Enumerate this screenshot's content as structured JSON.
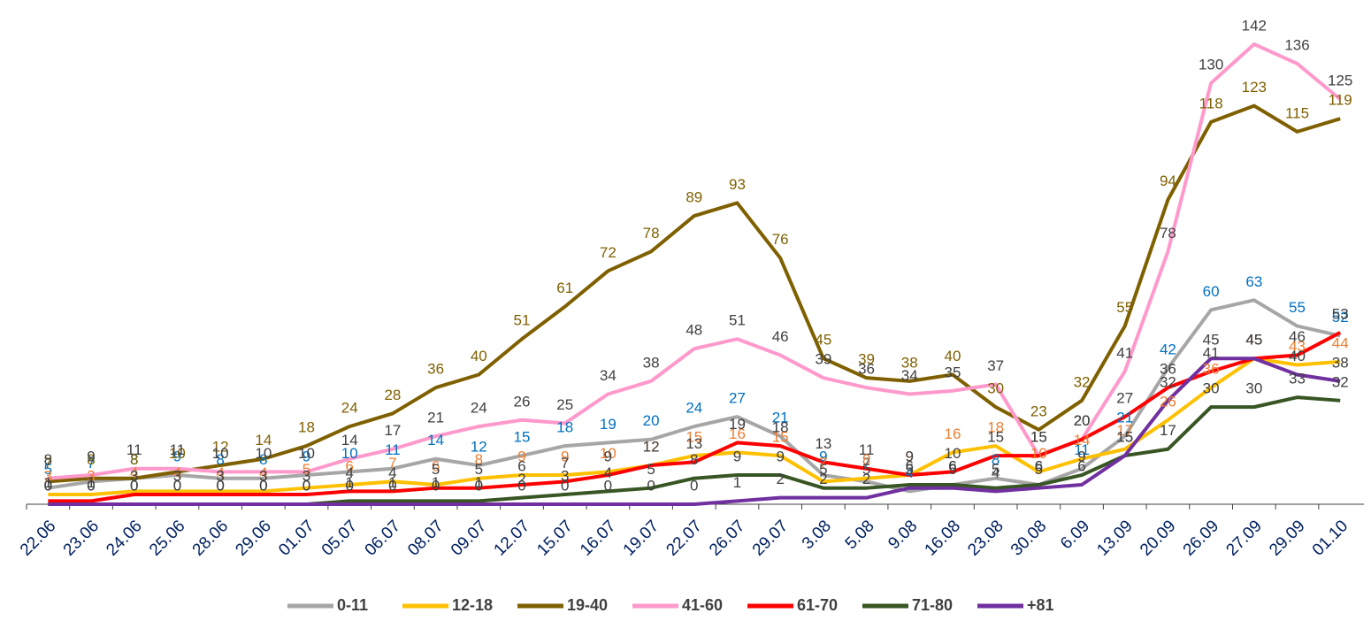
{
  "chart_data": {
    "type": "line",
    "categories": [
      "22.06",
      "23.06",
      "24.06",
      "25.06",
      "28.06",
      "29.06",
      "01.07",
      "05.07",
      "06.07",
      "08.07",
      "09.07",
      "12.07",
      "15.07",
      "16.07",
      "19.07",
      "22.07",
      "26.07",
      "29.07",
      "3.08",
      "5.08",
      "9.08",
      "16.08",
      "23.08",
      "30.08",
      "6.09",
      "13.09",
      "20.09",
      "26.09",
      "27.09",
      "29.09",
      "01.10"
    ],
    "ylim": [
      0,
      145
    ],
    "legend": "bottom",
    "series": [
      {
        "name": "0-11",
        "color": "#a6a6a6",
        "label_color": "#0070c0",
        "values": [
          5,
          7,
          8,
          9,
          8,
          8,
          9,
          10,
          11,
          14,
          12,
          15,
          18,
          19,
          20,
          24,
          27,
          21,
          9,
          7,
          4,
          6,
          8,
          6,
          11,
          21,
          42,
          60,
          63,
          55,
          52
        ]
      },
      {
        "name": "12-18",
        "color": "#ffc000",
        "label_color": "#ed7d31",
        "values": [
          3,
          3,
          4,
          4,
          4,
          4,
          5,
          6,
          7,
          6,
          8,
          9,
          9,
          10,
          12,
          15,
          16,
          15,
          7,
          8,
          9,
          16,
          18,
          10,
          14,
          17,
          26,
          36,
          45,
          43,
          44
        ]
      },
      {
        "name": "19-40",
        "color": "#7f6000",
        "label_color": "#7f6000",
        "values": [
          7,
          8,
          8,
          10,
          12,
          14,
          18,
          24,
          28,
          36,
          40,
          51,
          61,
          72,
          78,
          89,
          93,
          76,
          45,
          39,
          38,
          40,
          30,
          23,
          32,
          55,
          94,
          118,
          123,
          115,
          119
        ]
      },
      {
        "name": "41-60",
        "color": "#ff99cc",
        "label_color": "#404040",
        "values": [
          8,
          9,
          11,
          11,
          10,
          10,
          10,
          14,
          17,
          21,
          24,
          26,
          25,
          34,
          38,
          48,
          51,
          46,
          39,
          36,
          34,
          35,
          37,
          15,
          20,
          41,
          78,
          130,
          142,
          136,
          125
        ]
      },
      {
        "name": "61-70",
        "color": "#ff0000",
        "label_color": "#404040",
        "values": [
          1,
          1,
          3,
          3,
          3,
          3,
          3,
          4,
          4,
          5,
          5,
          6,
          7,
          9,
          12,
          13,
          19,
          18,
          13,
          11,
          9,
          10,
          15,
          15,
          20,
          27,
          36,
          41,
          45,
          46,
          53
        ]
      },
      {
        "name": "71-80",
        "color": "#375623",
        "label_color": "#404040",
        "values": [
          0,
          0,
          0,
          0,
          0,
          0,
          0,
          1,
          1,
          1,
          1,
          2,
          3,
          4,
          5,
          8,
          9,
          9,
          5,
          5,
          6,
          6,
          5,
          6,
          9,
          15,
          17,
          30,
          30,
          33,
          32
        ]
      },
      {
        "name": "+81",
        "color": "#7030a0",
        "label_color": "#404040",
        "values": [
          0,
          0,
          0,
          0,
          0,
          0,
          0,
          0,
          0,
          0,
          0,
          0,
          0,
          0,
          0,
          0,
          1,
          2,
          2,
          2,
          5,
          5,
          4,
          5,
          6,
          15,
          32,
          45,
          45,
          40,
          38
        ]
      }
    ]
  }
}
